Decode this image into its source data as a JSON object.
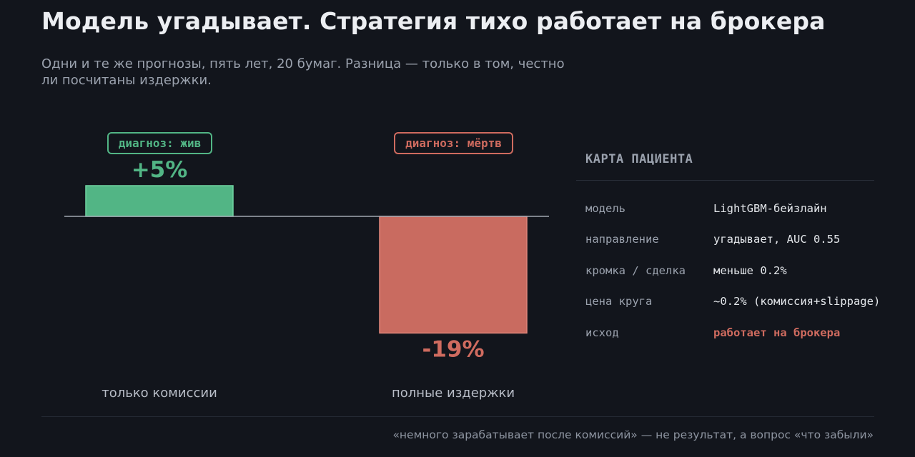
{
  "header": {
    "title": "Модель угадывает. Стратегия тихо работает на брокера",
    "subtitle": "Одни и те же прогнозы, пять лет, 20 бумаг. Разница — только в том, честно ли посчитаны издержки."
  },
  "chart_data": {
    "type": "bar",
    "categories": [
      "только комиссии",
      "полные издержки"
    ],
    "values": [
      5,
      -19
    ],
    "value_labels": [
      "+5%",
      "-19%"
    ],
    "badges": [
      "диагноз: жив",
      "диагноз: мёртв"
    ],
    "colors": [
      "#52b585",
      "#c96b60"
    ],
    "ylim": [
      -19,
      5
    ],
    "grid": false,
    "title": "",
    "xlabel": "",
    "ylabel": ""
  },
  "card": {
    "title": "КАРТА ПАЦИЕНТА",
    "rows": [
      {
        "key": "модель",
        "value": "LightGBM-бейзлайн"
      },
      {
        "key": "направление",
        "value": "угадывает, AUC 0.55"
      },
      {
        "key": "кромка / сделка",
        "value": "меньше 0.2%"
      },
      {
        "key": "цена круга",
        "value": "~0.2% (комиссия+slippage)"
      },
      {
        "key": "исход",
        "value": "работает на брокера"
      }
    ],
    "accent_color": "#cf6b5f"
  },
  "footer": {
    "note": "«немного зарабатывает после комиссий» — не результат, а вопрос «что забыли»"
  }
}
